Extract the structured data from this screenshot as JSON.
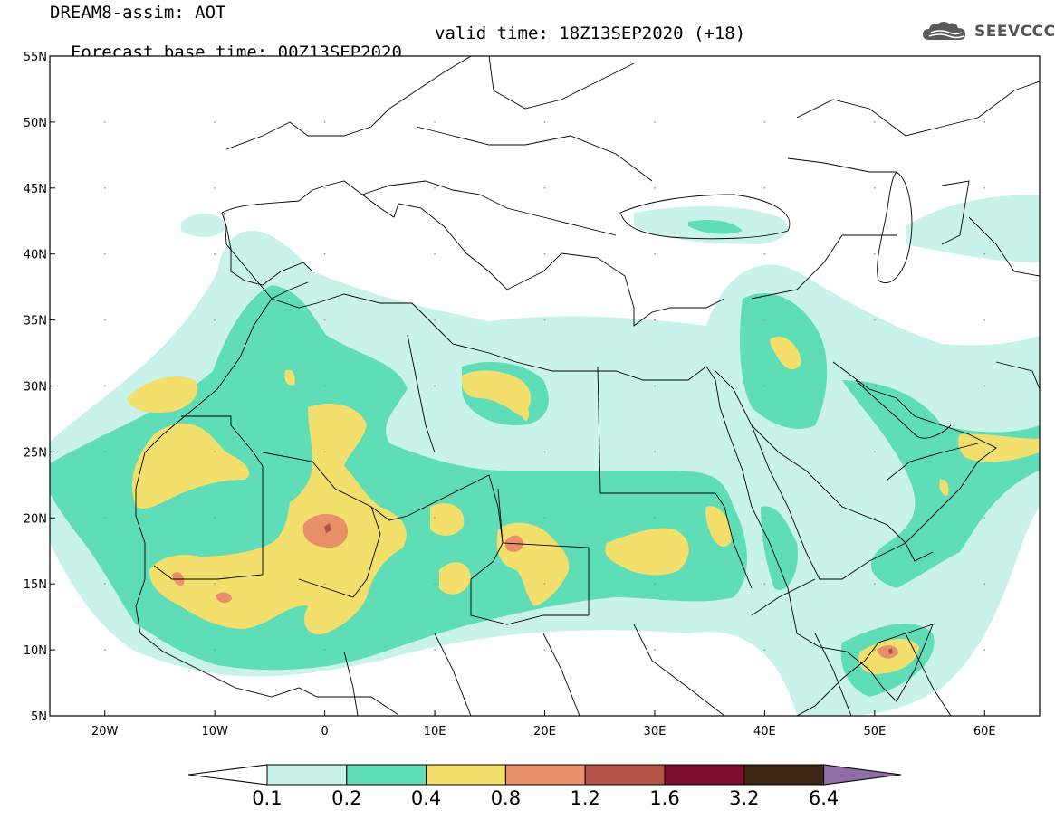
{
  "header": {
    "line1": "DREAM8-assim: AOT",
    "forecast": "Forecast base time: 00Z13SEP2020",
    "valid": "valid time: 18Z13SEP2020 (+18)"
  },
  "logo": {
    "text": "SEEVCCC",
    "icon": "cloud-icon"
  },
  "map": {
    "lon_range": [
      -25,
      65
    ],
    "lat_range": [
      5,
      55
    ],
    "lat_ticks": [
      "5N",
      "10N",
      "15N",
      "20N",
      "25N",
      "30N",
      "35N",
      "40N",
      "45N",
      "50N",
      "55N"
    ],
    "lon_ticks": [
      "20W",
      "10W",
      "0",
      "10E",
      "20E",
      "30E",
      "40E",
      "50E",
      "60E"
    ],
    "variable": "AOT"
  },
  "colorbar": {
    "labels": [
      "0.1",
      "0.2",
      "0.4",
      "0.8",
      "1.2",
      "1.6",
      "3.2",
      "6.4"
    ],
    "colors": [
      "#c8f2ea",
      "#5fddb6",
      "#f3e06c",
      "#e9906a",
      "#b45448",
      "#7e0f2e",
      "#3e2714",
      "#8f6ea6"
    ],
    "extend": "both"
  }
}
